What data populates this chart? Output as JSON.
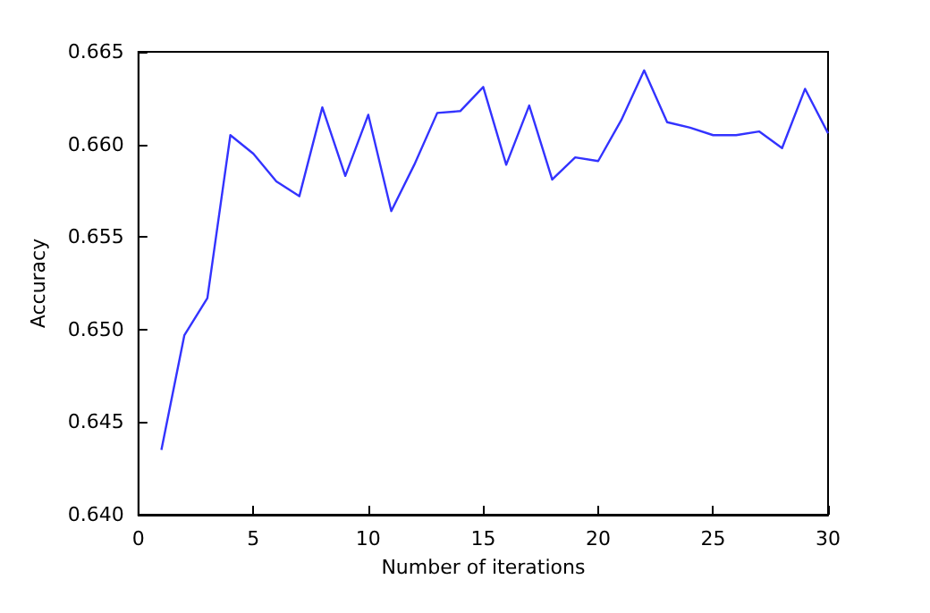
{
  "chart_data": {
    "type": "line",
    "xlabel": "Number of iterations",
    "ylabel": "Accuracy",
    "x": [
      1,
      2,
      3,
      4,
      5,
      6,
      7,
      8,
      9,
      10,
      11,
      12,
      13,
      14,
      15,
      16,
      17,
      18,
      19,
      20,
      21,
      22,
      23,
      24,
      25,
      26,
      27,
      28,
      29,
      30
    ],
    "series": [
      {
        "color": "#3333ff",
        "values": [
          0.6435,
          0.6497,
          0.6517,
          0.6605,
          0.6595,
          0.658,
          0.6572,
          0.662,
          0.6583,
          0.6616,
          0.6564,
          0.6589,
          0.6617,
          0.6618,
          0.6631,
          0.6589,
          0.6621,
          0.6581,
          0.6593,
          0.6591,
          0.6613,
          0.664,
          0.6612,
          0.6609,
          0.6605,
          0.6605,
          0.6607,
          0.6598,
          0.663,
          0.6606
        ]
      }
    ],
    "xlim": [
      0,
      30
    ],
    "xticks": [
      0,
      5,
      10,
      15,
      20,
      25,
      30
    ],
    "ylim": [
      0.64,
      0.665
    ],
    "yticks": [
      {
        "value": 0.64,
        "label": "0.640"
      },
      {
        "value": 0.645,
        "label": "0.645"
      },
      {
        "value": 0.65,
        "label": "0.650"
      },
      {
        "value": 0.655,
        "label": "0.655"
      },
      {
        "value": 0.66,
        "label": "0.660"
      },
      {
        "value": 0.665,
        "label": "0.665"
      }
    ],
    "grid": false
  }
}
